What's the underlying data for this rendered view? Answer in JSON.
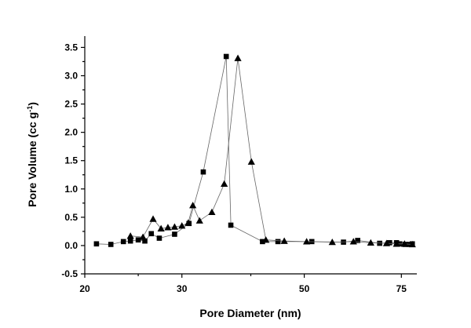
{
  "chart_data": {
    "type": "scatter",
    "xlabel": "Pore Diameter (nm)",
    "ylabel_main": "Pore Volume (cc g",
    "ylabel_sup": "-1",
    "ylabel_end": ")",
    "xscale": "log",
    "xlim": [
      20,
      80
    ],
    "ylim": [
      -0.5,
      3.7
    ],
    "xticks": [
      20,
      30,
      50,
      75
    ],
    "xtick_labels": [
      "20",
      "30",
      "50",
      "75"
    ],
    "yticks": [
      -0.5,
      0.0,
      0.5,
      1.0,
      1.5,
      2.0,
      2.5,
      3.0,
      3.5
    ],
    "ytick_labels": [
      "-0.5",
      "0.0",
      "0.5",
      "1.0",
      "1.5",
      "2.0",
      "2.5",
      "3.0",
      "3.5"
    ],
    "grid": false,
    "series": [
      {
        "marker": "square",
        "x": [
          21.0,
          22.3,
          23.5,
          24.2,
          25.0,
          25.7,
          26.4,
          27.3,
          29.1,
          30.9,
          32.8,
          36.1,
          36.8,
          42.0,
          44.8,
          51.6,
          58.9,
          62.5,
          68.5,
          71.4,
          73.5,
          74.5,
          76.2,
          77.5,
          78.5
        ],
        "values": [
          0.03,
          0.02,
          0.07,
          0.08,
          0.1,
          0.08,
          0.21,
          0.13,
          0.2,
          0.39,
          1.3,
          3.34,
          0.36,
          0.07,
          0.07,
          0.07,
          0.06,
          0.09,
          0.04,
          0.05,
          0.05,
          0.03,
          0.02,
          0.02,
          0.03
        ]
      },
      {
        "marker": "triangle",
        "x": [
          24.2,
          25.5,
          26.6,
          27.5,
          28.3,
          29.1,
          30.0,
          30.8,
          31.4,
          32.3,
          34.0,
          35.8,
          37.9,
          40.1,
          42.6,
          46.0,
          50.5,
          56.2,
          61.4,
          66.0,
          70.5,
          73.5,
          76.0,
          78.5
        ],
        "values": [
          0.17,
          0.15,
          0.47,
          0.3,
          0.32,
          0.33,
          0.35,
          0.4,
          0.71,
          0.44,
          0.59,
          1.09,
          3.31,
          1.48,
          0.1,
          0.08,
          0.07,
          0.06,
          0.07,
          0.05,
          0.04,
          0.03,
          0.03,
          0.02
        ]
      }
    ]
  }
}
